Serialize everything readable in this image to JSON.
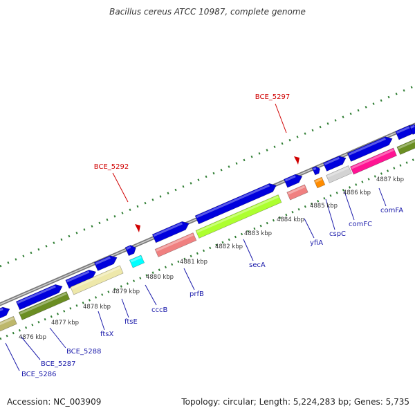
{
  "title": "Bacillus cereus ATCC 10987, complete genome",
  "accession_text": "Accession: NC_003909",
  "summary_text": "Topology: circular; Length: 5,224,283 bp; Genes: 5,735",
  "colors": {
    "backbone": "#888888",
    "tick": "#2e7d32",
    "gene_label": "#1a1aaa",
    "marker": "#d00000",
    "axis_text": "#333333"
  },
  "scale_labels": [
    "4876 kbp",
    "4877 kbp",
    "4878 kbp",
    "4879 kbp",
    "4880 kbp",
    "4881 kbp",
    "4882 kbp",
    "4883 kbp",
    "4884 kbp",
    "4885 kbp",
    "4886 kbp",
    "4887 kbp"
  ],
  "gene_labels": [
    "BCE_5286",
    "BCE_5287",
    "BCE_5288",
    "ftsX",
    "ftsE",
    "cccB",
    "prfB",
    "secA",
    "yfiA",
    "cspC",
    "comFC",
    "comFA"
  ],
  "marker_labels": [
    "BCE_5292",
    "BCE_5297"
  ],
  "blocks": [
    {
      "name": "fwd-1",
      "color": "#0000dd"
    },
    {
      "name": "fwd-2",
      "color": "#0000dd"
    },
    {
      "name": "fwd-3",
      "color": "#0000dd"
    },
    {
      "name": "fwd-4",
      "color": "#0000dd"
    },
    {
      "name": "fwd-5",
      "color": "#0000dd"
    },
    {
      "name": "fwd-6",
      "color": "#0000dd"
    },
    {
      "name": "fwd-7",
      "color": "#0000dd"
    },
    {
      "name": "fwd-8",
      "color": "#0000dd"
    },
    {
      "name": "fwd-9",
      "color": "#0000dd"
    },
    {
      "name": "fwd-10",
      "color": "#0000dd"
    },
    {
      "name": "fwd-11",
      "color": "#0000dd"
    },
    {
      "name": "fwd-12",
      "color": "#0000dd"
    },
    {
      "name": "fwd-13",
      "color": "#0000dd"
    },
    {
      "name": "cog-1",
      "color": "#bdb76b"
    },
    {
      "name": "cog-2",
      "color": "#6b8e23"
    },
    {
      "name": "cog-3",
      "color": "#eee8aa"
    },
    {
      "name": "cog-4",
      "color": "#00ffff"
    },
    {
      "name": "cog-5",
      "color": "#f08080"
    },
    {
      "name": "cog-6",
      "color": "#adff2f"
    },
    {
      "name": "cog-7",
      "color": "#f08080"
    },
    {
      "name": "cog-8",
      "color": "#ff8c00"
    },
    {
      "name": "cog-9",
      "color": "#d3d3d3"
    },
    {
      "name": "cog-10",
      "color": "#ff1493"
    },
    {
      "name": "cog-11",
      "color": "#6b8e23"
    }
  ]
}
